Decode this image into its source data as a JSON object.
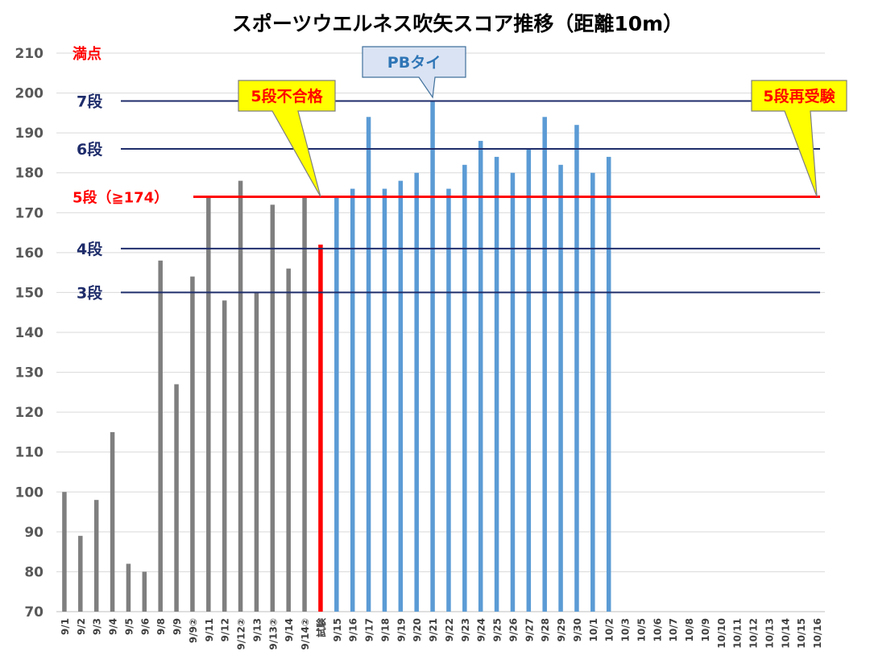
{
  "chart_data": {
    "type": "bar",
    "title": "スポーツウエルネス吹矢スコア推移（距離10m）",
    "ylim": [
      70,
      210
    ],
    "yticks": [
      70,
      80,
      90,
      100,
      110,
      120,
      130,
      140,
      150,
      160,
      170,
      180,
      190,
      200,
      210
    ],
    "grid": "horizontal",
    "categories": [
      "9/1",
      "9/2",
      "9/3",
      "9/4",
      "9/5",
      "9/6",
      "9/8",
      "9/9",
      "9/9②",
      "9/11",
      "9/12",
      "9/12②",
      "9/13",
      "9/13②",
      "9/14",
      "9/14②",
      "試験",
      "9/15",
      "9/16",
      "9/17",
      "9/18",
      "9/19",
      "9/20",
      "9/21",
      "9/22",
      "9/23",
      "9/24",
      "9/25",
      "9/26",
      "9/27",
      "9/28",
      "9/29",
      "9/30",
      "10/1",
      "10/2",
      "10/3",
      "10/5",
      "10/6",
      "10/7",
      "10/8",
      "10/9",
      "10/10",
      "10/11",
      "10/12",
      "10/13",
      "10/14",
      "10/15",
      "10/16"
    ],
    "values": [
      100,
      89,
      98,
      115,
      82,
      80,
      158,
      127,
      154,
      174,
      148,
      178,
      150,
      172,
      156,
      174,
      162,
      174,
      176,
      194,
      176,
      178,
      180,
      198,
      176,
      182,
      188,
      184,
      180,
      186,
      194,
      182,
      192,
      180,
      184,
      null,
      null,
      null,
      null,
      null,
      null,
      null,
      null,
      null,
      null,
      null,
      null,
      null
    ],
    "bar_groups": [
      {
        "from": 0,
        "to": 15,
        "color": "#7f7f7f"
      },
      {
        "from": 16,
        "to": 16,
        "color": "#ff0000"
      },
      {
        "from": 17,
        "to": 34,
        "color": "#5b9bd5"
      }
    ],
    "reference_lines": [
      {
        "label": "満点",
        "y": 210,
        "color": "#ff0000",
        "line": false
      },
      {
        "label": "7段",
        "y": 198,
        "color": "#1f2d6b",
        "line": true
      },
      {
        "label": "6段",
        "y": 186,
        "color": "#1f2d6b",
        "line": true
      },
      {
        "label": "5段（≧174）",
        "y": 174,
        "color": "#ff0000",
        "line": true
      },
      {
        "label": "4段",
        "y": 161,
        "color": "#1f2d6b",
        "line": true
      },
      {
        "label": "3段",
        "y": 150,
        "color": "#1f2d6b",
        "line": true
      }
    ],
    "callouts": [
      {
        "text": "5段不合格",
        "color": "#ff0000",
        "fill": "#ffff00",
        "points_to_category": "試験"
      },
      {
        "text": "PBタイ",
        "color": "#2e75b6",
        "fill": "#dae3f3",
        "points_to_category": "9/21"
      },
      {
        "text": "5段再受験",
        "color": "#ff0000",
        "fill": "#ffff00",
        "points_to_category": "10/16"
      }
    ]
  }
}
